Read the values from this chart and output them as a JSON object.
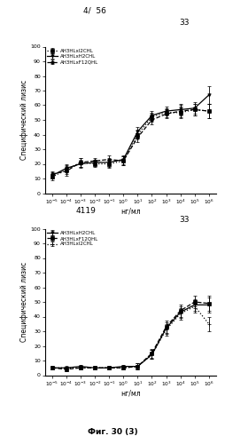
{
  "top_label": "4/  56",
  "panel1_subtitle": "33",
  "panel2_title": "4119",
  "panel2_subtitle": "33",
  "bottom_label": "Фиг. 30 (3)",
  "ylabel": "Специфический лизис",
  "xlabel": "нг/мл",
  "yticks": [
    0,
    10,
    20,
    30,
    40,
    50,
    60,
    70,
    80,
    90,
    100
  ],
  "panel1": {
    "series": [
      {
        "label": "AH3HLxI2CHL",
        "linestyle": "dotted",
        "marker": "s",
        "color": "#000000",
        "x": [
          -5,
          -4,
          -3,
          -2,
          -1,
          0,
          1,
          2,
          3,
          4,
          5,
          6
        ],
        "y": [
          11,
          16,
          21,
          20,
          20,
          22,
          40,
          52,
          55,
          55,
          57,
          56
        ],
        "yerr": [
          2,
          3,
          3,
          2,
          3,
          3,
          3,
          3,
          3,
          4,
          4,
          5
        ]
      },
      {
        "label": "AH3HLxH2CHL",
        "linestyle": "solid",
        "marker": "v",
        "color": "#000000",
        "x": [
          -5,
          -4,
          -3,
          -2,
          -1,
          0,
          1,
          2,
          3,
          4,
          5,
          6
        ],
        "y": [
          12,
          17,
          20,
          21,
          21,
          23,
          42,
          53,
          56,
          57,
          58,
          67
        ],
        "yerr": [
          2,
          3,
          3,
          2,
          3,
          3,
          3,
          3,
          3,
          4,
          4,
          6
        ]
      },
      {
        "label": "AH3HLxF12QHL",
        "linestyle": "dashed",
        "marker": "o",
        "color": "#000000",
        "x": [
          -5,
          -4,
          -3,
          -2,
          -1,
          0,
          1,
          2,
          3,
          4,
          5,
          6
        ],
        "y": [
          13,
          15,
          21,
          22,
          23,
          22,
          38,
          50,
          54,
          56,
          57,
          56
        ],
        "yerr": [
          2,
          3,
          3,
          2,
          3,
          3,
          3,
          3,
          3,
          4,
          4,
          5
        ]
      }
    ]
  },
  "panel2": {
    "series": [
      {
        "label": "AH3HLxH2CHL",
        "linestyle": "solid",
        "marker": "v",
        "color": "#000000",
        "x": [
          -5,
          -4,
          -3,
          -2,
          -1,
          0,
          1,
          2,
          3,
          4,
          5,
          6
        ],
        "y": [
          5,
          5,
          6,
          5,
          5,
          6,
          6,
          14,
          32,
          43,
          48,
          48
        ],
        "yerr": [
          1,
          1,
          1,
          1,
          1,
          1,
          2,
          3,
          4,
          4,
          4,
          5
        ]
      },
      {
        "label": "AH3HLxF12QHL",
        "linestyle": "dashed",
        "marker": "s",
        "color": "#000000",
        "x": [
          -5,
          -4,
          -3,
          -2,
          -1,
          0,
          1,
          2,
          3,
          4,
          5,
          6
        ],
        "y": [
          5,
          4,
          5,
          5,
          5,
          5,
          6,
          15,
          33,
          44,
          50,
          49
        ],
        "yerr": [
          1,
          1,
          1,
          1,
          1,
          1,
          2,
          3,
          4,
          4,
          4,
          5
        ]
      },
      {
        "label": "AH3HLxI2CHL",
        "linestyle": "dotted",
        "marker": "+",
        "color": "#000000",
        "x": [
          -5,
          -4,
          -3,
          -2,
          -1,
          0,
          1,
          2,
          3,
          4,
          5,
          6
        ],
        "y": [
          5,
          5,
          5,
          5,
          5,
          5,
          6,
          14,
          31,
          42,
          47,
          35
        ],
        "yerr": [
          1,
          1,
          1,
          1,
          1,
          1,
          2,
          3,
          4,
          4,
          4,
          5
        ]
      }
    ]
  }
}
